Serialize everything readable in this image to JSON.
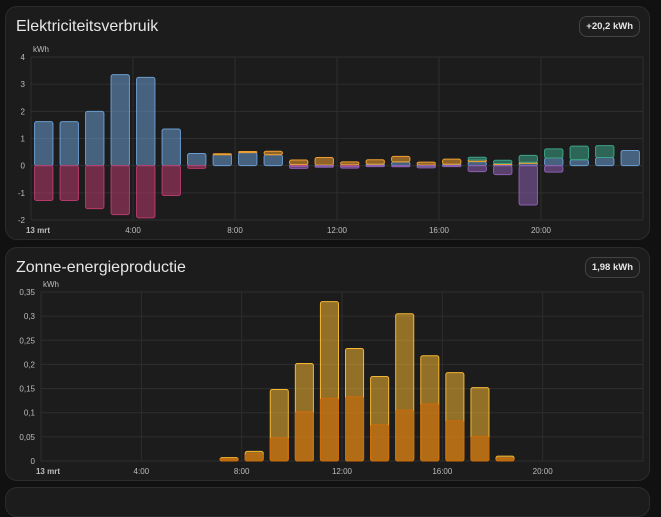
{
  "cards": [
    {
      "title": "Elektriciteitsverbruik",
      "badge": "+20,2 kWh",
      "chart_data": {
        "type": "bar",
        "stacked": true,
        "ylabel": "kWh",
        "ylim": [
          -2,
          4
        ],
        "yticks": [
          -2,
          -1,
          0,
          1,
          2,
          3,
          4
        ],
        "x_tick_labels": [
          "13 mrt",
          "4:00",
          "8:00",
          "12:00",
          "16:00",
          "20:00"
        ],
        "x_tick_hours": [
          0,
          4,
          8,
          12,
          16,
          20
        ],
        "hours": [
          0,
          1,
          2,
          3,
          4,
          5,
          6,
          7,
          8,
          9,
          10,
          11,
          12,
          13,
          14,
          15,
          16,
          17,
          18,
          19,
          20,
          21,
          22,
          23
        ],
        "grid": true,
        "colors": {
          "grid_consumption": "#6a9ccf",
          "return_to_grid": "#b83a6c",
          "solar_consumed": "#f0a030",
          "battery_out": "#3ca387",
          "battery_in": "#8d5fb0"
        },
        "series": [
          {
            "key": "grid_consumption",
            "values": [
              1.62,
              1.62,
              2.0,
              3.35,
              3.25,
              1.35,
              0.45,
              0.42,
              0.48,
              0.4,
              0.04,
              0.02,
              0.03,
              0.05,
              0.14,
              0.02,
              0.05,
              0.15,
              0.06,
              0.1,
              0.28,
              0.22,
              0.3,
              0.56
            ]
          },
          {
            "key": "solar_consumed",
            "values": [
              0,
              0,
              0,
              0,
              0,
              0,
              0,
              0.02,
              0.04,
              0.13,
              0.17,
              0.28,
              0.11,
              0.17,
              0.2,
              0.11,
              0.19,
              0.06,
              0.02,
              0.02,
              0,
              0,
              0,
              0
            ]
          },
          {
            "key": "battery_out",
            "values": [
              0,
              0,
              0,
              0,
              0,
              0,
              0,
              0,
              0,
              0,
              0,
              0,
              0,
              0,
              0,
              0,
              0,
              0.1,
              0.12,
              0.26,
              0.34,
              0.5,
              0.44,
              0
            ]
          },
          {
            "key": "return_to_grid",
            "values": [
              -1.28,
              -1.28,
              -1.58,
              -1.8,
              -1.92,
              -1.1,
              -0.1,
              0,
              0,
              0,
              -0.02,
              0,
              -0.02,
              0,
              0,
              0,
              0,
              0,
              0,
              0,
              0,
              0,
              0,
              0
            ]
          },
          {
            "key": "battery_in",
            "values": [
              0,
              0,
              0,
              0,
              0,
              0,
              0,
              0,
              0,
              0,
              -0.08,
              -0.06,
              -0.07,
              -0.03,
              -0.04,
              -0.08,
              -0.03,
              -0.22,
              -0.33,
              -1.45,
              -0.24,
              0,
              0,
              0
            ]
          }
        ]
      }
    },
    {
      "title": "Zonne-energieproductie",
      "badge": "1,98 kWh",
      "chart_data": {
        "type": "bar",
        "stacked": false,
        "overlaid": true,
        "ylabel": "kWh",
        "ylim": [
          0,
          0.35
        ],
        "yticks": [
          0,
          0.05,
          0.1,
          0.15,
          0.2,
          0.25,
          0.3,
          0.35
        ],
        "ytick_labels": [
          "0",
          "0,05",
          "0,1",
          "0,15",
          "0,2",
          "0,25",
          "0,3",
          "0,35"
        ],
        "x_tick_labels": [
          "13 mrt",
          "4:00",
          "8:00",
          "12:00",
          "16:00",
          "20:00"
        ],
        "x_tick_hours": [
          0,
          4,
          8,
          12,
          16,
          20
        ],
        "hours": [
          0,
          1,
          2,
          3,
          4,
          5,
          6,
          7,
          8,
          9,
          10,
          11,
          12,
          13,
          14,
          15,
          16,
          17,
          18,
          19,
          20,
          21,
          22,
          23
        ],
        "grid": true,
        "colors": {
          "total": "#f5b731",
          "inner": "#cc6a0a"
        },
        "series": [
          {
            "key": "total",
            "values": [
              0,
              0,
              0,
              0,
              0,
              0,
              0,
              0.007,
              0.02,
              0.148,
              0.202,
              0.33,
              0.233,
              0.175,
              0.305,
              0.218,
              0.183,
              0.152,
              0.01,
              0,
              0,
              0,
              0,
              0
            ]
          },
          {
            "key": "inner",
            "values": [
              0,
              0,
              0,
              0,
              0,
              0,
              0,
              0.005,
              0.015,
              0.048,
              0.102,
              0.13,
              0.133,
              0.075,
              0.105,
              0.118,
              0.083,
              0.051,
              0.006,
              0,
              0,
              0,
              0,
              0
            ]
          }
        ]
      }
    }
  ]
}
